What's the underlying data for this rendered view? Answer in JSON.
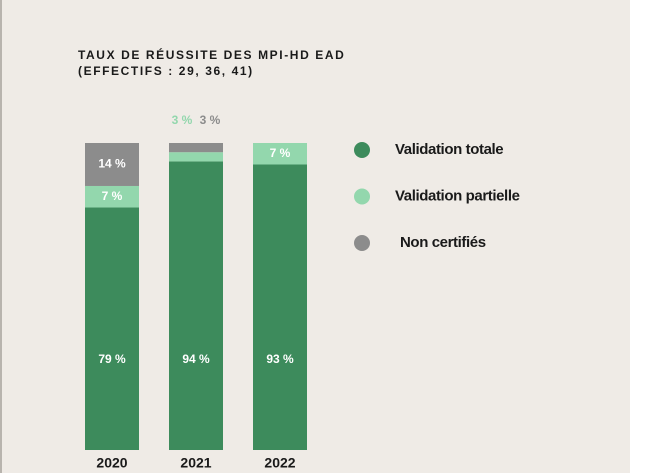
{
  "chart_data": {
    "type": "stacked_bar",
    "title": "TAUX DE RÉUSSITE DES MPI-HD EAD",
    "subtitle": "(EFFECTIFS : 29, 36, 41)",
    "categories": [
      "2020",
      "2021",
      "2022"
    ],
    "ylim": [
      0,
      100
    ],
    "series": [
      {
        "name": "Validation totale",
        "color": "#3d8b5c",
        "values": [
          79,
          94,
          93
        ],
        "value_labels": [
          "79 %",
          "94 %",
          "93 %"
        ]
      },
      {
        "name": "Validation partielle",
        "color": "#93d7ad",
        "values": [
          7,
          3,
          7
        ],
        "value_labels": [
          "7 %",
          "3 %",
          "7 %"
        ]
      },
      {
        "name": "Non certifiés",
        "color": "#8c8c8c",
        "values": [
          14,
          3,
          0
        ],
        "value_labels": [
          "14 %",
          "3 %",
          null
        ]
      }
    ]
  }
}
